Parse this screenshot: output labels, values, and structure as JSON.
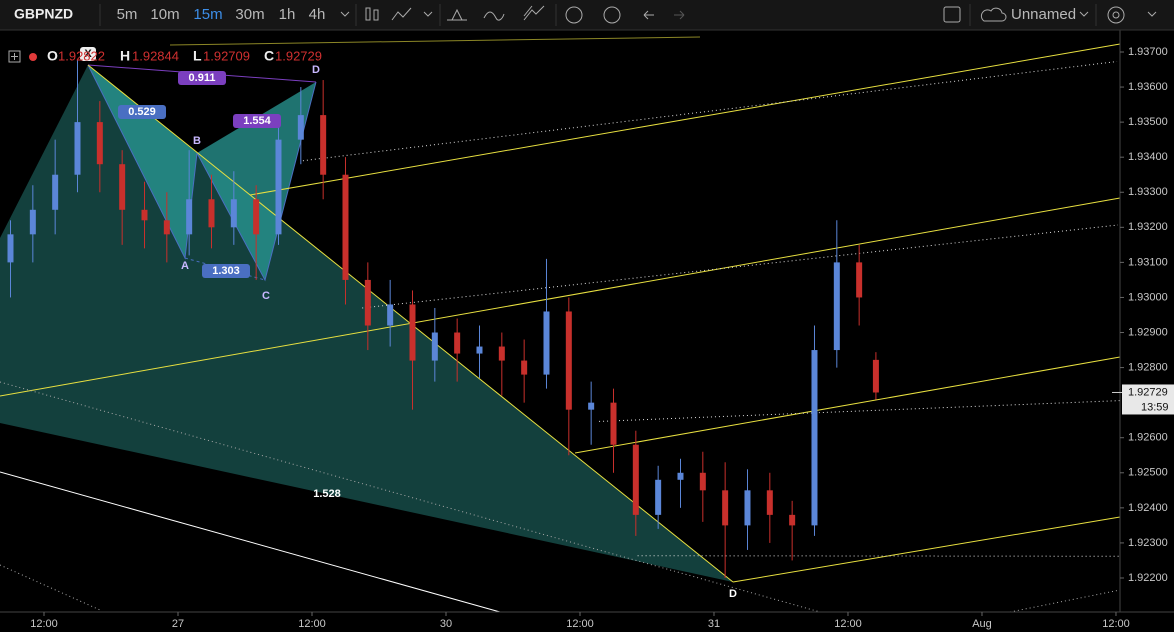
{
  "toolbar": {
    "symbol": "GBPNZD",
    "intervals": [
      {
        "label": "5m"
      },
      {
        "label": "10m"
      },
      {
        "label": "15m",
        "active": true
      },
      {
        "label": "30m"
      },
      {
        "label": "1h"
      },
      {
        "label": "4h"
      }
    ],
    "layout_name": "Unnamed"
  },
  "chart_data": {
    "type": "candlestick",
    "legend": {
      "open_label": "O",
      "high_label": "H",
      "low_label": "L",
      "close_label": "C"
    },
    "x": [
      -3,
      -1,
      1,
      3,
      5,
      7,
      9,
      11,
      13,
      15,
      17,
      19,
      21,
      23,
      25,
      27,
      29,
      31,
      33,
      35,
      37,
      39,
      41,
      43,
      45,
      47,
      49,
      51,
      53,
      55,
      57,
      59,
      61,
      63,
      65,
      67,
      69,
      71,
      73,
      74.5
    ],
    "open": [
      1.931,
      1.9318,
      1.9325,
      1.9335,
      1.935,
      1.9338,
      1.9325,
      1.9322,
      1.9318,
      1.9328,
      1.932,
      1.9328,
      1.9318,
      1.9345,
      1.9352,
      1.9335,
      1.9305,
      1.9292,
      1.9298,
      1.9282,
      1.929,
      1.9284,
      1.9286,
      1.9282,
      1.9278,
      1.9296,
      1.9268,
      1.927,
      1.9258,
      1.9238,
      1.9248,
      1.925,
      1.9245,
      1.9235,
      1.9245,
      1.9238,
      1.9235,
      1.9285,
      1.931,
      1.92822
    ],
    "high": [
      1.9322,
      1.9332,
      1.9345,
      1.9368,
      1.9356,
      1.9342,
      1.9333,
      1.933,
      1.9342,
      1.9335,
      1.9336,
      1.9332,
      1.9352,
      1.936,
      1.9362,
      1.934,
      1.931,
      1.9305,
      1.9302,
      1.9297,
      1.9294,
      1.9292,
      1.929,
      1.9288,
      1.9311,
      1.93,
      1.9276,
      1.9274,
      1.9262,
      1.9252,
      1.9254,
      1.9256,
      1.9253,
      1.9251,
      1.925,
      1.9242,
      1.9292,
      1.9322,
      1.9315,
      1.92844
    ],
    "low": [
      1.93,
      1.931,
      1.9318,
      1.933,
      1.933,
      1.9315,
      1.9314,
      1.931,
      1.9312,
      1.9314,
      1.9315,
      1.9305,
      1.9315,
      1.9338,
      1.9328,
      1.9298,
      1.9285,
      1.9286,
      1.9268,
      1.9276,
      1.9276,
      1.9277,
      1.9272,
      1.927,
      1.9274,
      1.9255,
      1.9258,
      1.925,
      1.9232,
      1.9234,
      1.924,
      1.9236,
      1.922,
      1.9228,
      1.923,
      1.9225,
      1.9232,
      1.928,
      1.9292,
      1.92709
    ],
    "close": [
      1.9318,
      1.9325,
      1.9335,
      1.935,
      1.9338,
      1.9325,
      1.9322,
      1.9318,
      1.9328,
      1.932,
      1.9328,
      1.9318,
      1.9345,
      1.9352,
      1.9335,
      1.9305,
      1.9292,
      1.9298,
      1.9282,
      1.929,
      1.9284,
      1.9286,
      1.9282,
      1.9278,
      1.9296,
      1.9268,
      1.927,
      1.9258,
      1.9238,
      1.9248,
      1.925,
      1.9245,
      1.9235,
      1.9245,
      1.9238,
      1.9235,
      1.9285,
      1.931,
      1.93,
      1.92729
    ],
    "up_color": "#5b86d8",
    "down_color": "#c8302c",
    "xlim": [
      -3.94,
      96.36
    ],
    "ylim": [
      1.92103,
      1.93757
    ],
    "xticks": [
      {
        "value": 0,
        "label": "12:00"
      },
      {
        "value": 12,
        "label": "27"
      },
      {
        "value": 24,
        "label": "12:00"
      },
      {
        "value": 36,
        "label": "30"
      },
      {
        "value": 48,
        "label": "12:00"
      },
      {
        "value": 60,
        "label": "31"
      },
      {
        "value": 72,
        "label": "12:00"
      },
      {
        "value": 84,
        "label": "Aug"
      },
      {
        "value": 96,
        "label": "12:00"
      }
    ],
    "yticks": [
      {
        "value": 1.937,
        "label": "1.93700"
      },
      {
        "value": 1.936,
        "label": "1.93600"
      },
      {
        "value": 1.935,
        "label": "1.93500"
      },
      {
        "value": 1.934,
        "label": "1.93400"
      },
      {
        "value": 1.933,
        "label": "1.93300"
      },
      {
        "value": 1.932,
        "label": "1.93200"
      },
      {
        "value": 1.931,
        "label": "1.93100"
      },
      {
        "value": 1.93,
        "label": "1.93000"
      },
      {
        "value": 1.929,
        "label": "1.92900"
      },
      {
        "value": 1.928,
        "label": "1.92800"
      },
      {
        "value": 1.926,
        "label": "1.92600"
      },
      {
        "value": 1.925,
        "label": "1.92500"
      },
      {
        "value": 1.924,
        "label": "1.92400"
      },
      {
        "value": 1.923,
        "label": "1.92300"
      },
      {
        "value": 1.922,
        "label": "1.92200"
      }
    ],
    "grid": false,
    "countdown": "13:59",
    "annotations": [
      {
        "text": "X"
      },
      {
        "text": "A"
      },
      {
        "text": "B"
      },
      {
        "text": "C"
      },
      {
        "text": "D"
      },
      {
        "text": "0.529"
      },
      {
        "text": "1.554"
      },
      {
        "text": "0.911"
      },
      {
        "text": "1.303"
      },
      {
        "text": "1.528"
      },
      {
        "text": "D"
      }
    ]
  }
}
